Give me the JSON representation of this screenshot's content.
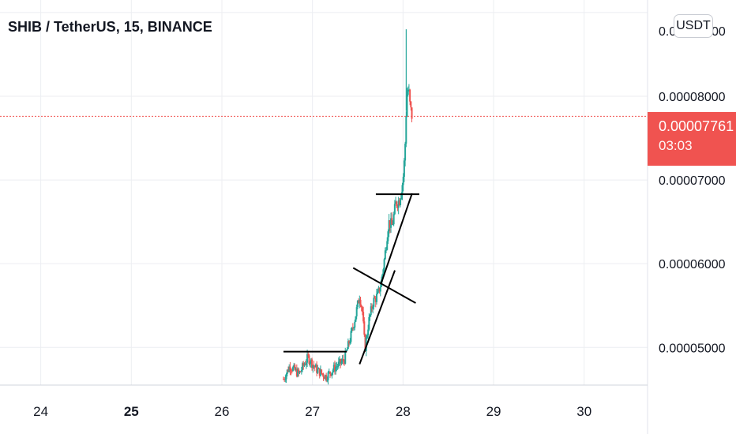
{
  "title": "SHIB / TetherUS, 15, BINANCE",
  "unit_badge": "USDT",
  "top_price_label_partial": "0.0",
  "top_price_label_tail": "00",
  "last_price": {
    "value": "0.00007761",
    "countdown": "03:03",
    "color": "#f05350"
  },
  "colors": {
    "up": "#26a69a",
    "down": "#ef5350",
    "grid": "#eceef2",
    "drawing": "#000000"
  },
  "chart_data": {
    "type": "candlestick",
    "xlabel": "",
    "ylabel": "",
    "x_ticks": [
      {
        "label": "24",
        "day": 24,
        "bold": false
      },
      {
        "label": "25",
        "day": 25,
        "bold": true
      },
      {
        "label": "26",
        "day": 26,
        "bold": false
      },
      {
        "label": "27",
        "day": 27,
        "bold": false
      },
      {
        "label": "28",
        "day": 28,
        "bold": false
      },
      {
        "label": "29",
        "day": 29,
        "bold": false
      },
      {
        "label": "30",
        "day": 30,
        "bold": false
      }
    ],
    "y_ticks": [
      {
        "label": "0.00008000",
        "value": 8e-05
      },
      {
        "label": "0.00007000",
        "value": 7e-05
      },
      {
        "label": "0.00006000",
        "value": 6e-05
      },
      {
        "label": "0.00005000",
        "value": 5e-05
      }
    ],
    "xlim": [
      23.55,
      30.7
    ],
    "ylim": [
      4.55e-05,
      9.15e-05
    ],
    "grid": true,
    "last_price_value": 7.761e-05,
    "price_path": [
      [
        26.68,
        4.62e-05
      ],
      [
        26.75,
        4.78e-05
      ],
      [
        26.85,
        4.68e-05
      ],
      [
        26.95,
        4.88e-05
      ],
      [
        27.05,
        4.73e-05
      ],
      [
        27.15,
        4.65e-05
      ],
      [
        27.25,
        4.76e-05
      ],
      [
        27.35,
        4.85e-05
      ],
      [
        27.42,
        5.12e-05
      ],
      [
        27.47,
        5.35e-05
      ],
      [
        27.52,
        5.62e-05
      ],
      [
        27.55,
        5.45e-05
      ],
      [
        27.58,
        4.98e-05
      ],
      [
        27.62,
        5.3e-05
      ],
      [
        27.67,
        5.55e-05
      ],
      [
        27.72,
        5.62e-05
      ],
      [
        27.76,
        5.78e-05
      ],
      [
        27.8,
        6.1e-05
      ],
      [
        27.84,
        6.5e-05
      ],
      [
        27.88,
        6.45e-05
      ],
      [
        27.92,
        6.72e-05
      ],
      [
        27.96,
        6.76e-05
      ],
      [
        28.0,
        7e-05
      ],
      [
        28.02,
        7.3e-05
      ],
      [
        28.04,
        8e-05
      ],
      [
        28.06,
        8.1e-05
      ],
      [
        28.08,
        7.85e-05
      ],
      [
        28.1,
        7.76e-05
      ]
    ],
    "spike": {
      "day": 28.035,
      "high": 8.8e-05
    },
    "drawings": [
      {
        "from": [
          26.68,
          4.95e-05
        ],
        "to": [
          27.38,
          4.95e-05
        ]
      },
      {
        "from": [
          27.45,
          5.95e-05
        ],
        "to": [
          28.14,
          5.53e-05
        ]
      },
      {
        "from": [
          27.52,
          4.8e-05
        ],
        "to": [
          27.91,
          5.92e-05
        ]
      },
      {
        "from": [
          27.7,
          6.83e-05
        ],
        "to": [
          28.18,
          6.83e-05
        ]
      },
      {
        "from": [
          27.76,
          5.77e-05
        ],
        "to": [
          28.1,
          6.84e-05
        ]
      }
    ]
  }
}
